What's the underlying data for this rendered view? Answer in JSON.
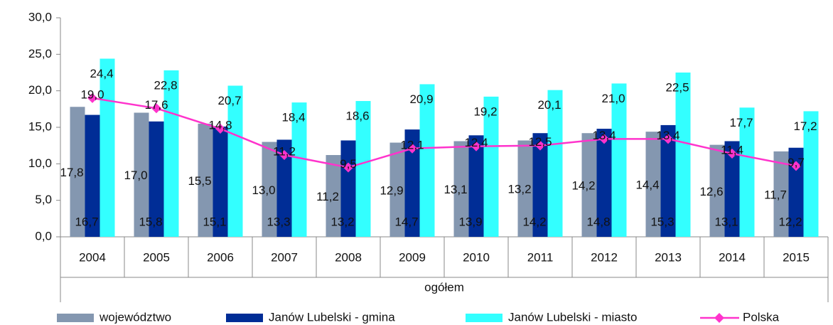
{
  "chart_data": {
    "type": "bar_line",
    "x_label": "ogółem",
    "categories": [
      "2004",
      "2005",
      "2006",
      "2007",
      "2008",
      "2009",
      "2010",
      "2011",
      "2012",
      "2013",
      "2014",
      "2015"
    ],
    "ylim": [
      0,
      30
    ],
    "yticks": [
      {
        "value": 0,
        "label": "0,0"
      },
      {
        "value": 5,
        "label": "5,0"
      },
      {
        "value": 10,
        "label": "10,0"
      },
      {
        "value": 15,
        "label": "15,0"
      },
      {
        "value": 20,
        "label": "20,0"
      },
      {
        "value": 25,
        "label": "25,0"
      },
      {
        "value": 30,
        "label": "30,0"
      }
    ],
    "grid": false,
    "legend": "bottom",
    "series": [
      {
        "name": "województwo",
        "type": "bar",
        "color": "#8497b0",
        "values": [
          17.8,
          17.0,
          15.5,
          13.0,
          11.2,
          12.9,
          13.1,
          13.2,
          14.2,
          14.4,
          12.6,
          11.7
        ],
        "value_labels": [
          "17,8",
          "17,0",
          "15,5",
          "13,0",
          "11,2",
          "12,9",
          "13,1",
          "13,2",
          "14,2",
          "14,4",
          "12,6",
          "11,7"
        ]
      },
      {
        "name": "Janów Lubelski - gmina",
        "type": "bar",
        "color": "#002d96",
        "values": [
          16.7,
          15.8,
          15.1,
          13.3,
          13.2,
          14.7,
          13.9,
          14.2,
          14.8,
          15.3,
          13.1,
          12.2
        ],
        "value_labels": [
          "16,7",
          "15,8",
          "15,1",
          "13,3",
          "13,2",
          "14,7",
          "13,9",
          "14,2",
          "14,8",
          "15,3",
          "13,1",
          "12,2"
        ]
      },
      {
        "name": "Janów Lubelski - miasto",
        "type": "bar",
        "color": "#33ffff",
        "values": [
          24.4,
          22.8,
          20.7,
          18.4,
          18.6,
          20.9,
          19.2,
          20.1,
          21.0,
          22.5,
          17.7,
          17.2
        ],
        "value_labels": [
          "24,4",
          "22,8",
          "20,7",
          "18,4",
          "18,6",
          "20,9",
          "19,2",
          "20,1",
          "21,0",
          "22,5",
          "17,7",
          "17,2"
        ]
      },
      {
        "name": "Polska",
        "type": "line",
        "color": "#ff33cc",
        "values": [
          19.0,
          17.6,
          14.8,
          11.2,
          9.5,
          12.1,
          12.4,
          12.5,
          13.4,
          13.4,
          11.4,
          9.7
        ],
        "value_labels": [
          "19,0",
          "17,6",
          "14,8",
          "11,2",
          "9,5",
          "12,1",
          "12,4",
          "12,5",
          "13,4",
          "13,4",
          "11,4",
          "9,7"
        ]
      }
    ]
  }
}
